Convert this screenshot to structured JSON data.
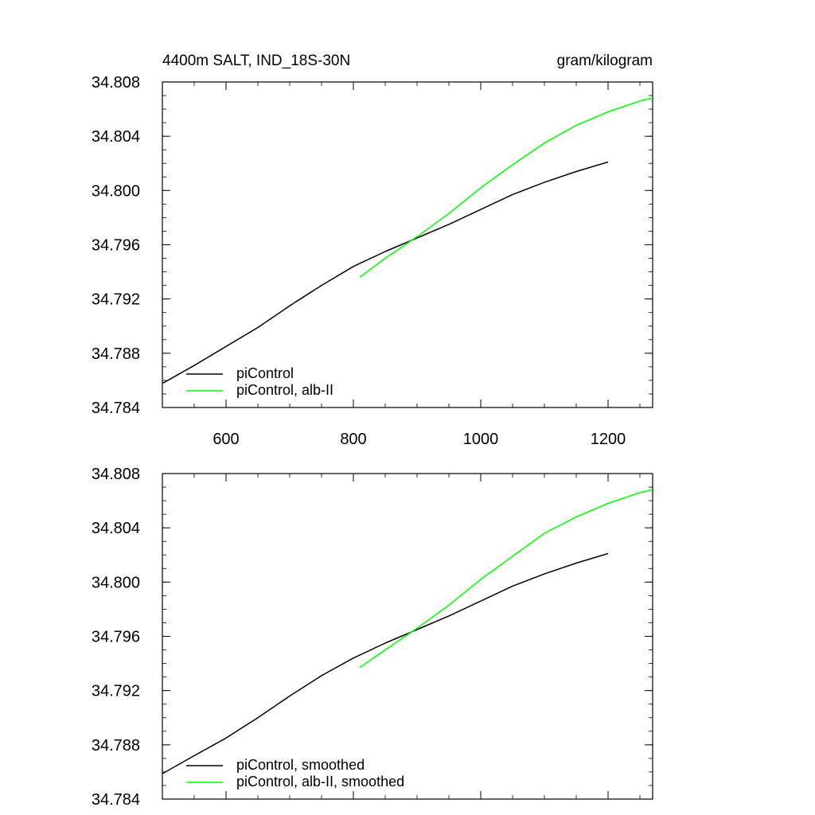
{
  "colors": {
    "background": "#ffffff",
    "axis": "#000000",
    "series_black": "#000000",
    "series_green": "#00ff00"
  },
  "chart_data": [
    {
      "type": "line",
      "title_left": "4400m SALT, IND_18S-30N",
      "title_right": "gram/kilogram",
      "xlim": [
        500,
        1270
      ],
      "ylim": [
        34.784,
        34.808
      ],
      "xticks": [
        600,
        800,
        1000,
        1200
      ],
      "xtick_labels": [
        "600",
        "800",
        "1000",
        "1200"
      ],
      "yticks": [
        34.784,
        34.788,
        34.792,
        34.796,
        34.8,
        34.804,
        34.808
      ],
      "ytick_labels": [
        "34.784",
        "34.788",
        "34.792",
        "34.796",
        "34.800",
        "34.804",
        "34.808"
      ],
      "grid": false,
      "legend_position": "bottom-left",
      "series": [
        {
          "name": "piControl",
          "color": "#000000",
          "x": [
            501,
            550,
            600,
            650,
            700,
            750,
            800,
            850,
            900,
            950,
            1000,
            1050,
            1100,
            1150,
            1200
          ],
          "y": [
            34.7858,
            34.7871,
            34.7885,
            34.7899,
            34.7915,
            34.793,
            34.7944,
            34.7955,
            34.7965,
            34.7975,
            34.7986,
            34.7997,
            34.8006,
            34.8014,
            34.8021
          ]
        },
        {
          "name": "piControl, alb-II",
          "color": "#00ff00",
          "x": [
            810,
            850,
            900,
            950,
            1000,
            1050,
            1100,
            1150,
            1200,
            1250,
            1270
          ],
          "y": [
            34.7936,
            34.795,
            34.7966,
            34.7983,
            34.8002,
            34.8019,
            34.8035,
            34.8048,
            34.8058,
            34.8066,
            34.8068
          ]
        }
      ]
    },
    {
      "type": "line",
      "xlim": [
        500,
        1270
      ],
      "ylim": [
        34.784,
        34.808
      ],
      "xticks": [
        600,
        800,
        1000,
        1200
      ],
      "yticks": [
        34.784,
        34.788,
        34.792,
        34.796,
        34.8,
        34.804,
        34.808
      ],
      "ytick_labels": [
        "34.784",
        "34.788",
        "34.792",
        "34.796",
        "34.800",
        "34.804",
        "34.808"
      ],
      "grid": false,
      "legend_position": "bottom-left",
      "series": [
        {
          "name": "piControl, smoothed",
          "color": "#000000",
          "x": [
            501,
            550,
            600,
            650,
            700,
            750,
            800,
            850,
            900,
            950,
            1000,
            1050,
            1100,
            1150,
            1200
          ],
          "y": [
            34.7859,
            34.7872,
            34.7885,
            34.79,
            34.7916,
            34.7931,
            34.7944,
            34.7955,
            34.7965,
            34.7975,
            34.7986,
            34.7997,
            34.8006,
            34.8014,
            34.8021
          ]
        },
        {
          "name": "piControl, alb-II, smoothed",
          "color": "#00ff00",
          "x": [
            810,
            850,
            900,
            950,
            1000,
            1050,
            1100,
            1150,
            1200,
            1250,
            1270
          ],
          "y": [
            34.7937,
            34.795,
            34.7966,
            34.7983,
            34.8002,
            34.8019,
            34.8036,
            34.8048,
            34.8058,
            34.8066,
            34.8068
          ]
        }
      ]
    }
  ]
}
